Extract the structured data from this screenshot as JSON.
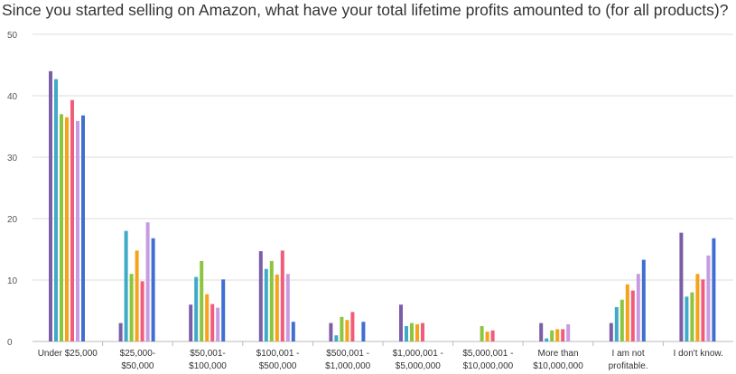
{
  "chart_data": {
    "type": "bar",
    "title": "Since you started selling on Amazon, what have your total lifetime profits amounted to (for all products)?",
    "xlabel": "",
    "ylabel": "",
    "ylim": [
      0,
      50
    ],
    "yticks": [
      0,
      10,
      20,
      30,
      40,
      50
    ],
    "grid": true,
    "legend": "none",
    "categories": [
      [
        "Under $25,000"
      ],
      [
        "$25,000-",
        "$50,000"
      ],
      [
        "$50,001-",
        "$100,000"
      ],
      [
        "$100,001 -",
        "$500,000"
      ],
      [
        "$500,001 -",
        "$1,000,000"
      ],
      [
        "$1,000,001 -",
        "$5,000,000"
      ],
      [
        "$5,000,001 -",
        "$10,000,000"
      ],
      [
        "More than",
        "$10,000,000"
      ],
      [
        "I am not",
        "profitable."
      ],
      [
        "I don't know."
      ]
    ],
    "series": [
      {
        "color": "#7b5ea7",
        "values": [
          44,
          3,
          6,
          14.7,
          3,
          6,
          0,
          3,
          3,
          17.7
        ]
      },
      {
        "color": "#3fa9c9",
        "values": [
          42.7,
          18,
          10.5,
          11.8,
          1,
          2.5,
          0,
          0.5,
          5.6,
          7.3
        ]
      },
      {
        "color": "#8cc63e",
        "values": [
          37,
          11,
          13.1,
          13.1,
          4,
          3,
          2.5,
          1.8,
          6.8,
          8
        ]
      },
      {
        "color": "#f7a21b",
        "values": [
          36.5,
          14.8,
          7.7,
          10.9,
          3.5,
          2.8,
          1.6,
          2,
          9.3,
          11
        ]
      },
      {
        "color": "#f25c7a",
        "values": [
          39.3,
          9.8,
          6.1,
          14.8,
          4.8,
          3,
          1.8,
          2,
          8.3,
          10.1
        ]
      },
      {
        "color": "#c79be0",
        "values": [
          35.9,
          19.4,
          5.5,
          11,
          0,
          0,
          0,
          2.8,
          11,
          14
        ]
      },
      {
        "color": "#3e6fd1",
        "values": [
          36.8,
          16.8,
          10.1,
          3.2,
          3.2,
          0,
          0,
          0,
          13.3,
          16.8
        ]
      }
    ]
  }
}
